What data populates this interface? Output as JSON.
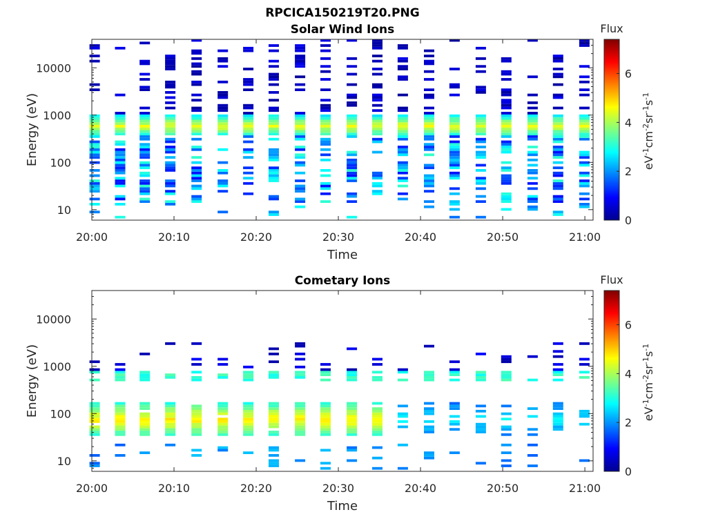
{
  "figure_title": "RPCICA150219T20.PNG",
  "colors": {
    "colormap": [
      "#00008f",
      "#0000ff",
      "#0080ff",
      "#00ffff",
      "#80ff80",
      "#ffff00",
      "#ff8000",
      "#ff0000",
      "#800000"
    ]
  },
  "chart_data": [
    {
      "type": "heatmap",
      "title": "Solar Wind Ions",
      "xlabel": "Time",
      "ylabel": "Energy (eV)",
      "x_ticks": [
        "20:00",
        "20:10",
        "20:20",
        "20:30",
        "20:40",
        "20:50",
        "21:00"
      ],
      "xlim": [
        "20:00",
        "21:01"
      ],
      "y_scale": "log",
      "y_ticks": [
        10,
        100,
        1000,
        10000
      ],
      "y_tick_labels": [
        "10",
        "100",
        "1000",
        "10000"
      ],
      "ylim": [
        6,
        40000
      ],
      "colorbar": {
        "title": "Flux",
        "label": "eV-1cm-2sr-1s-1",
        "ticks": [
          0,
          2,
          4,
          6
        ],
        "range": [
          0,
          7.4
        ]
      },
      "column_times_min": [
        0.3,
        3.4,
        6.4,
        9.5,
        12.7,
        15.9,
        19.0,
        22.1,
        25.3,
        28.4,
        31.6,
        34.7,
        37.8,
        41.0,
        44.1,
        47.3,
        50.4,
        53.6,
        56.7,
        59.9
      ],
      "solar_wind_peak_eV": 550,
      "peak_flux_level": 4.3
    },
    {
      "type": "heatmap",
      "title": "Cometary Ions",
      "xlabel": "Time",
      "ylabel": "Energy (eV)",
      "x_ticks": [
        "20:00",
        "20:10",
        "20:20",
        "20:30",
        "20:40",
        "20:50",
        "21:00"
      ],
      "xlim": [
        "20:00",
        "21:01"
      ],
      "y_scale": "log",
      "y_ticks": [
        10,
        100,
        1000,
        10000
      ],
      "y_tick_labels": [
        "10",
        "100",
        "1000",
        "10000"
      ],
      "ylim": [
        6,
        40000
      ],
      "colorbar": {
        "title": "Flux",
        "label": "eV-1cm-2sr-1s-1",
        "ticks": [
          0,
          2,
          4,
          6
        ],
        "range": [
          0,
          7.4
        ]
      },
      "column_times_min": [
        0.3,
        3.4,
        6.4,
        9.5,
        12.7,
        15.9,
        19.0,
        22.1,
        25.3,
        28.4,
        31.6,
        34.7,
        37.8,
        41.0,
        44.1,
        47.3,
        50.4,
        53.6,
        56.7,
        59.9
      ],
      "cometary_peak_eV": 70,
      "peak_flux_level": 4.6
    }
  ]
}
